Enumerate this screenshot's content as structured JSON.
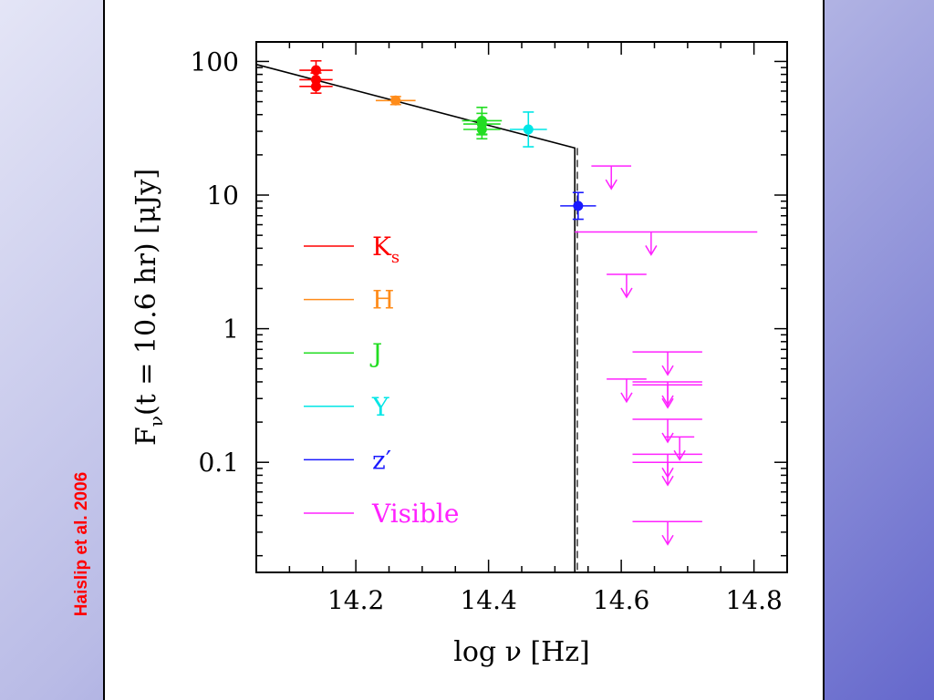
{
  "credit": "Haislip et al. 2006",
  "colors": {
    "Ks": "#ff0000",
    "H": "#ff8c1a",
    "J": "#22dd22",
    "Y": "#00e6e6",
    "z": "#1a1aff",
    "Visible": "#ff22ff",
    "model": "#000000"
  },
  "chart_data": {
    "type": "scatter",
    "xlabel": "log ν [Hz]",
    "ylabel": "F_ν(t = 10.6 hr) [μJy]",
    "ylabel_parts": {
      "pre": "F",
      "sub": "ν",
      "post": "(t = 10.6 hr) [μJy]"
    },
    "xlim": [
      14.05,
      14.85
    ],
    "ylim": [
      0.015,
      140
    ],
    "yscale": "log",
    "x_ticks": [
      "14.2",
      "14.4",
      "14.6",
      "14.8"
    ],
    "y_ticks": [
      "100",
      "10",
      "1",
      "0.1"
    ],
    "legend": [
      {
        "key": "Ks",
        "text": "K",
        "sub": "s"
      },
      {
        "key": "H",
        "text": "H",
        "sub": ""
      },
      {
        "key": "J",
        "text": "J",
        "sub": ""
      },
      {
        "key": "Y",
        "text": "Y",
        "sub": ""
      },
      {
        "key": "z",
        "text": "z′",
        "sub": ""
      },
      {
        "key": "Visible",
        "text": "Visible",
        "sub": ""
      }
    ],
    "legend_position": "left",
    "model": {
      "points": [
        [
          14.05,
          95
        ],
        [
          14.53,
          22.5
        ],
        [
          14.53,
          0.015
        ]
      ],
      "dashed_segment": [
        [
          14.531,
          22.5
        ],
        [
          14.531,
          0.015
        ]
      ]
    },
    "series": [
      {
        "key": "Ks",
        "points": [
          {
            "x": 14.14,
            "y": 86,
            "xerr": 0.025,
            "yerr": [
              0.07,
              0.07
            ]
          },
          {
            "x": 14.14,
            "y": 73,
            "xerr": 0.025,
            "yerr": [
              0.05,
              0.05
            ]
          },
          {
            "x": 14.14,
            "y": 65,
            "xerr": 0.025,
            "yerr": [
              0.05,
              0.05
            ]
          }
        ]
      },
      {
        "key": "H",
        "points": [
          {
            "x": 14.26,
            "y": 51,
            "xerr": 0.03,
            "yerr": [
              0.03,
              0.03
            ]
          }
        ]
      },
      {
        "key": "J",
        "points": [
          {
            "x": 14.39,
            "y": 36,
            "xerr": 0.03,
            "yerr": [
              0.1,
              0.1
            ]
          },
          {
            "x": 14.39,
            "y": 34,
            "xerr": 0.028,
            "yerr": [
              0.08,
              0.08
            ]
          },
          {
            "x": 14.39,
            "y": 31,
            "xerr": 0.028,
            "yerr": [
              0.07,
              0.07
            ]
          }
        ]
      },
      {
        "key": "Y",
        "points": [
          {
            "x": 14.46,
            "y": 31,
            "xerr": 0.028,
            "yerr": [
              0.13,
              0.13
            ]
          }
        ]
      },
      {
        "key": "z",
        "points": [
          {
            "x": 14.535,
            "y": 8.3,
            "xerr": 0.027,
            "yerr": [
              0.1,
              0.1
            ]
          }
        ]
      }
    ],
    "upper_limits": [
      {
        "x": 14.585,
        "y": 16.5,
        "xmin": 14.555,
        "xmax": 14.615
      },
      {
        "x": 14.645,
        "y": 5.3,
        "xmin": 14.53,
        "xmax": 14.805
      },
      {
        "x": 14.608,
        "y": 2.55,
        "xmin": 14.578,
        "xmax": 14.638
      },
      {
        "x": 14.67,
        "y": 0.67,
        "xmin": 14.617,
        "xmax": 14.722
      },
      {
        "x": 14.608,
        "y": 0.42,
        "xmin": 14.578,
        "xmax": 14.638
      },
      {
        "x": 14.67,
        "y": 0.4,
        "xmin": 14.617,
        "xmax": 14.722
      },
      {
        "x": 14.67,
        "y": 0.38,
        "xmin": 14.617,
        "xmax": 14.722
      },
      {
        "x": 14.67,
        "y": 0.21,
        "xmin": 14.617,
        "xmax": 14.722
      },
      {
        "x": 14.688,
        "y": 0.155,
        "xmin": 14.665,
        "xmax": 14.71
      },
      {
        "x": 14.67,
        "y": 0.115,
        "xmin": 14.617,
        "xmax": 14.722
      },
      {
        "x": 14.67,
        "y": 0.1,
        "xmin": 14.617,
        "xmax": 14.722
      },
      {
        "x": 14.67,
        "y": 0.036,
        "xmin": 14.617,
        "xmax": 14.722
      }
    ]
  }
}
